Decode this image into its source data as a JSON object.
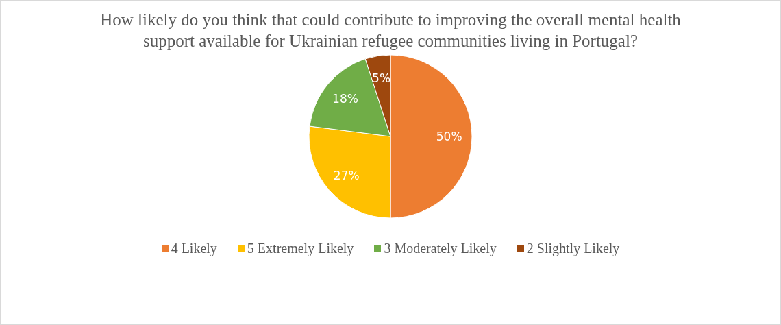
{
  "chart_data": {
    "type": "pie",
    "title": "How likely do you think that could contribute to improving the overall mental health support available for Ukrainian refugee communities living in Portugal?",
    "categories": [
      "4 Likely",
      "5 Extremely Likely",
      "3 Moderately Likely",
      "2 Slightly Likely"
    ],
    "values": [
      50,
      27,
      18,
      5
    ],
    "colors": [
      "#ed7d31",
      "#ffc000",
      "#70ad47",
      "#9e480e"
    ],
    "value_labels": [
      "50%",
      "27%",
      "18%",
      "5%"
    ],
    "legend": "bottom"
  }
}
